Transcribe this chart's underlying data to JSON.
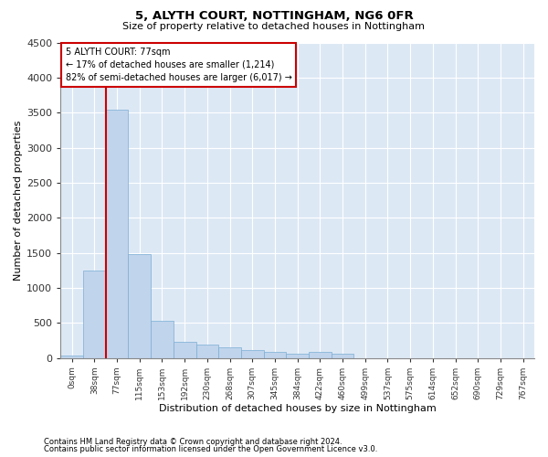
{
  "title1": "5, ALYTH COURT, NOTTINGHAM, NG6 0FR",
  "title2": "Size of property relative to detached houses in Nottingham",
  "xlabel": "Distribution of detached houses by size in Nottingham",
  "ylabel": "Number of detached properties",
  "footer1": "Contains HM Land Registry data © Crown copyright and database right 2024.",
  "footer2": "Contains public sector information licensed under the Open Government Licence v3.0.",
  "annotation_line1": "5 ALYTH COURT: 77sqm",
  "annotation_line2": "← 17% of detached houses are smaller (1,214)",
  "annotation_line3": "82% of semi-detached houses are larger (6,017) →",
  "bar_color": "#c0d4ec",
  "bar_edge_color": "#7aaed4",
  "redline_color": "#cc0000",
  "background_color": "#dde8f5",
  "grid_color": "#ffffff",
  "categories": [
    "0sqm",
    "38sqm",
    "77sqm",
    "115sqm",
    "153sqm",
    "192sqm",
    "230sqm",
    "268sqm",
    "307sqm",
    "345sqm",
    "384sqm",
    "422sqm",
    "460sqm",
    "499sqm",
    "537sqm",
    "575sqm",
    "614sqm",
    "652sqm",
    "690sqm",
    "729sqm",
    "767sqm"
  ],
  "bar_values": [
    30,
    1250,
    3540,
    1480,
    530,
    230,
    190,
    150,
    110,
    80,
    55,
    80,
    55,
    0,
    0,
    0,
    0,
    0,
    0,
    0,
    0
  ],
  "ylim": [
    0,
    4500
  ],
  "yticks": [
    0,
    500,
    1000,
    1500,
    2000,
    2500,
    3000,
    3500,
    4000,
    4500
  ],
  "redline_x": 2,
  "figwidth": 6.0,
  "figheight": 5.0,
  "dpi": 100
}
